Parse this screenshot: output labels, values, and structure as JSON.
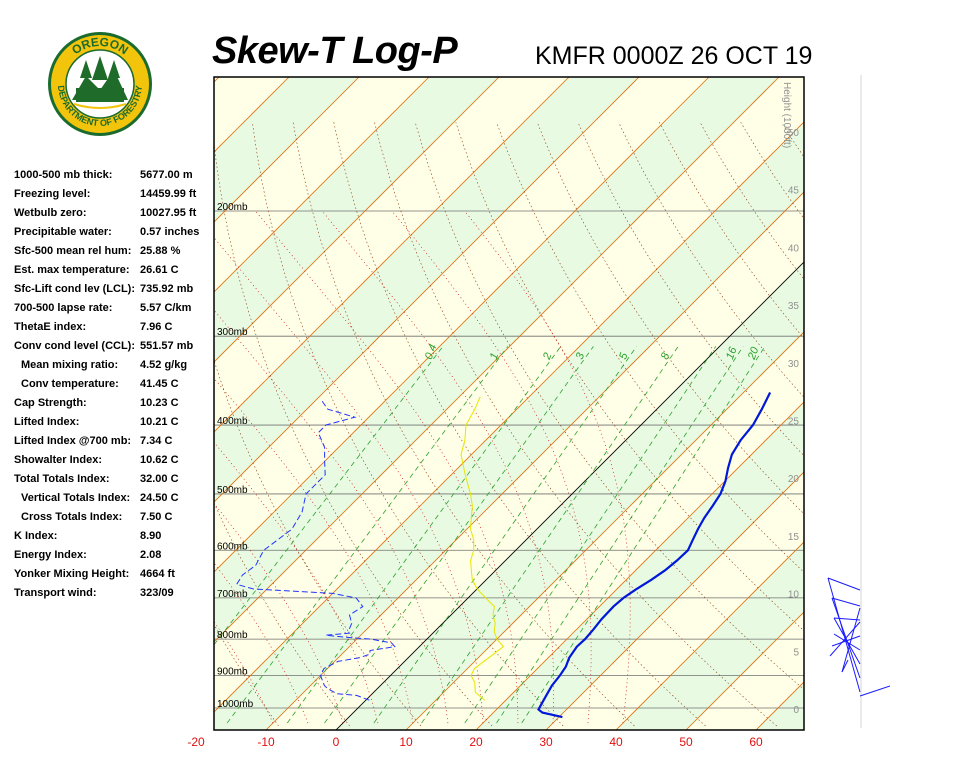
{
  "header": {
    "title": "Skew-T Log-P",
    "station": "KMFR 0000Z 26 OCT 19"
  },
  "logo": {
    "top_text": "OREGON",
    "bottom_text": "DEPARTMENT OF FORESTRY",
    "colors": {
      "ring": "#1a6b2e",
      "gold": "#f2c40c",
      "tree": "#1f6b2a",
      "sky": "#ffffff"
    }
  },
  "indices": [
    {
      "label": "1000-500 mb thick:",
      "value": "5677.00 m",
      "indent": false
    },
    {
      "label": "Freezing level:",
      "value": "14459.99 ft",
      "indent": false
    },
    {
      "label": "Wetbulb zero:",
      "value": "10027.95 ft",
      "indent": false
    },
    {
      "label": "Precipitable water:",
      "value": "0.57 inches",
      "indent": false
    },
    {
      "label": "Sfc-500 mean rel hum:",
      "value": "25.88 %",
      "indent": false
    },
    {
      "label": "Est. max temperature:",
      "value": "26.61 C",
      "indent": false
    },
    {
      "label": "Sfc-Lift cond lev (LCL):",
      "value": "735.92 mb",
      "indent": false
    },
    {
      "label": "700-500 lapse rate:",
      "value": "5.57 C/km",
      "indent": false
    },
    {
      "label": "ThetaE index:",
      "value": "7.96 C",
      "indent": false
    },
    {
      "label": "Conv cond level (CCL):",
      "value": "551.57 mb",
      "indent": false
    },
    {
      "label": "Mean mixing ratio:",
      "value": "4.52 g/kg",
      "indent": true
    },
    {
      "label": "Conv temperature:",
      "value": "41.45 C",
      "indent": true
    },
    {
      "label": "Cap Strength:",
      "value": "10.23 C",
      "indent": false
    },
    {
      "label": "Lifted Index:",
      "value": "10.21 C",
      "indent": false
    },
    {
      "label": "Lifted Index @700 mb:",
      "value": "7.34 C",
      "indent": false
    },
    {
      "label": "Showalter Index:",
      "value": "10.62 C",
      "indent": false
    },
    {
      "label": "Total Totals Index:",
      "value": "32.00 C",
      "indent": false
    },
    {
      "label": "Vertical Totals Index:",
      "value": "24.50 C",
      "indent": true
    },
    {
      "label": "Cross Totals Index:",
      "value": "7.50 C",
      "indent": true
    },
    {
      "label": "K Index:",
      "value": "8.90",
      "indent": false
    },
    {
      "label": "Energy Index:",
      "value": "2.08",
      "indent": false
    },
    {
      "label": "Yonker Mixing Height:",
      "value": "4664 ft",
      "indent": false
    },
    {
      "label": "Transport wind:",
      "value": "323/09",
      "indent": false
    }
  ],
  "chart_data": {
    "type": "line",
    "temperature_ticks": [
      -20,
      -10,
      0,
      10,
      20,
      30,
      40,
      50,
      60
    ],
    "pressure_levels": [
      {
        "p": 200,
        "label": "200mb"
      },
      {
        "p": 300,
        "label": "300mb"
      },
      {
        "p": 400,
        "label": "400mb"
      },
      {
        "p": 500,
        "label": "500mb"
      },
      {
        "p": 600,
        "label": "600mb"
      },
      {
        "p": 700,
        "label": "700mb"
      },
      {
        "p": 800,
        "label": "800mb"
      },
      {
        "p": 900,
        "label": "900mb"
      },
      {
        "p": 1000,
        "label": "1000mb"
      }
    ],
    "height_axis": {
      "label": "Height (1000ft)",
      "ticks": [
        0,
        5,
        10,
        15,
        20,
        25,
        30,
        35,
        40,
        45,
        50
      ]
    },
    "mixing_ratio_labels": [
      "0.4",
      "1",
      "2",
      "3",
      "5",
      "8",
      "16",
      "20"
    ],
    "series": [
      {
        "color": "#0018d8",
        "points": [
          [
            1030,
            30.5
          ],
          [
            1015,
            27
          ],
          [
            1005,
            26
          ],
          [
            980,
            25.5
          ],
          [
            955,
            25
          ],
          [
            930,
            24.5
          ],
          [
            900,
            24.2
          ],
          [
            875,
            23.8
          ],
          [
            850,
            23
          ],
          [
            820,
            22.5
          ],
          [
            800,
            22.6
          ],
          [
            775,
            22.4
          ],
          [
            750,
            22.1
          ],
          [
            720,
            22
          ],
          [
            700,
            22.2
          ],
          [
            680,
            22.8
          ],
          [
            660,
            23.6
          ],
          [
            640,
            24.2
          ],
          [
            620,
            24.5
          ],
          [
            600,
            24.6
          ],
          [
            580,
            23.8
          ],
          [
            560,
            23
          ],
          [
            540,
            22.3
          ],
          [
            520,
            21.8
          ],
          [
            500,
            21.2
          ],
          [
            480,
            20.1
          ],
          [
            460,
            18.6
          ],
          [
            440,
            17.2
          ],
          [
            420,
            16.4
          ],
          [
            400,
            16
          ],
          [
            380,
            15
          ],
          [
            360,
            13.8
          ]
        ]
      },
      {
        "color": "#2233ff",
        "points": [
          [
            975,
            0.5
          ],
          [
            960,
            -2
          ],
          [
            955,
            -5
          ],
          [
            940,
            -7
          ],
          [
            930,
            -8
          ],
          [
            900,
            -10
          ],
          [
            880,
            -10.5
          ],
          [
            860,
            -9.5
          ],
          [
            850,
            -7
          ],
          [
            840,
            -6
          ],
          [
            830,
            -6.5
          ],
          [
            820,
            -3.5
          ],
          [
            810,
            -4.5
          ],
          [
            800,
            -8
          ],
          [
            795,
            -12
          ],
          [
            790,
            -15
          ],
          [
            785,
            -12
          ],
          [
            775,
            -12.5
          ],
          [
            760,
            -13
          ],
          [
            740,
            -14.5
          ],
          [
            720,
            -13.8
          ],
          [
            700,
            -16
          ],
          [
            690,
            -20
          ],
          [
            680,
            -32
          ],
          [
            670,
            -35
          ],
          [
            650,
            -35.5
          ],
          [
            630,
            -35
          ],
          [
            600,
            -36
          ],
          [
            580,
            -35.5
          ],
          [
            560,
            -35
          ],
          [
            530,
            -36
          ],
          [
            500,
            -38
          ],
          [
            470,
            -38
          ],
          [
            450,
            -40
          ],
          [
            430,
            -42
          ],
          [
            410,
            -45
          ],
          [
            400,
            -45
          ],
          [
            390,
            -42
          ],
          [
            380,
            -47
          ],
          [
            370,
            -49
          ]
        ]
      },
      {
        "color": "#e6e600",
        "points": [
          [
            975,
            17
          ],
          [
            950,
            14.5
          ],
          [
            920,
            13
          ],
          [
            900,
            11.5
          ],
          [
            880,
            11
          ],
          [
            850,
            11.5
          ],
          [
            820,
            12
          ],
          [
            800,
            10
          ],
          [
            780,
            8.5
          ],
          [
            760,
            7.5
          ],
          [
            740,
            6
          ],
          [
            720,
            5
          ],
          [
            700,
            2.5
          ],
          [
            680,
            0
          ],
          [
            660,
            -2
          ],
          [
            640,
            -3.5
          ],
          [
            620,
            -5
          ],
          [
            600,
            -6
          ],
          [
            580,
            -7.5
          ],
          [
            560,
            -9.5
          ],
          [
            540,
            -11
          ],
          [
            520,
            -12.5
          ],
          [
            500,
            -14.5
          ],
          [
            470,
            -18
          ],
          [
            440,
            -21.5
          ],
          [
            420,
            -23
          ],
          [
            400,
            -25
          ],
          [
            380,
            -26
          ],
          [
            365,
            -27
          ]
        ]
      }
    ],
    "winds": [
      {
        "speed_kt": 9,
        "label": "323/09"
      }
    ]
  },
  "style": {
    "isotherm_color": "#e07010",
    "dry_adiabat_color": "#8a3a10",
    "moist_adiabat_color": "#d01010",
    "mixing_ratio_color": "#2aa02a",
    "band_light": "#fffee6",
    "band_green": "#e8fbe2"
  }
}
